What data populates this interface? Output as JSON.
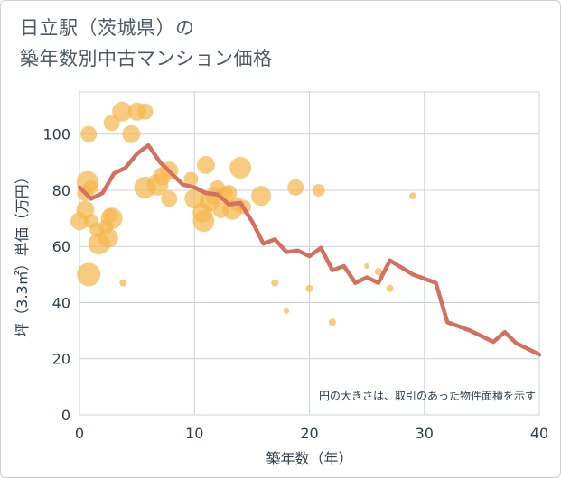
{
  "title_line1": "日立駅（茨城県）の",
  "title_line2": "築年数別中古マンション価格",
  "colors": {
    "line": "#d4705e",
    "bubble": "#f5b64a",
    "grid": "#c8d3dc",
    "axis": "#2f3f4c"
  },
  "chart_data": {
    "type": "scatter",
    "title": "日立駅（茨城県）の築年数別中古マンション価格",
    "xlabel": "築年数（年）",
    "ylabel": "坪（3.3㎡）単価（万円）",
    "xlim": [
      0,
      40
    ],
    "ylim": [
      0,
      115
    ],
    "x_ticks": [
      0,
      10,
      20,
      30,
      40
    ],
    "y_ticks": [
      0,
      20,
      40,
      60,
      80,
      100
    ],
    "grid": true,
    "annotation": "円の大きさは、取引のあった物件面積を示す",
    "series": [
      {
        "kind": "bubble",
        "points": [
          {
            "x": 0,
            "y": 69,
            "s": 10
          },
          {
            "x": 0.5,
            "y": 73,
            "s": 10
          },
          {
            "x": 0.5,
            "y": 79,
            "s": 9
          },
          {
            "x": 0.7,
            "y": 83,
            "s": 12
          },
          {
            "x": 0.8,
            "y": 100,
            "s": 9
          },
          {
            "x": 0.8,
            "y": 50,
            "s": 13
          },
          {
            "x": 1,
            "y": 81,
            "s": 8
          },
          {
            "x": 1,
            "y": 69,
            "s": 8
          },
          {
            "x": 1.5,
            "y": 66,
            "s": 8
          },
          {
            "x": 1.7,
            "y": 61,
            "s": 12
          },
          {
            "x": 2.3,
            "y": 67,
            "s": 8
          },
          {
            "x": 2.5,
            "y": 63,
            "s": 11
          },
          {
            "x": 2.7,
            "y": 71,
            "s": 8
          },
          {
            "x": 2.8,
            "y": 70,
            "s": 12
          },
          {
            "x": 2.8,
            "y": 104,
            "s": 9
          },
          {
            "x": 3.7,
            "y": 108,
            "s": 11
          },
          {
            "x": 3.8,
            "y": 47,
            "s": 4
          },
          {
            "x": 4.5,
            "y": 100,
            "s": 10
          },
          {
            "x": 5,
            "y": 108,
            "s": 10
          },
          {
            "x": 5.7,
            "y": 108,
            "s": 9
          },
          {
            "x": 5.7,
            "y": 81,
            "s": 12
          },
          {
            "x": 6.8,
            "y": 82,
            "s": 12
          },
          {
            "x": 7.2,
            "y": 85,
            "s": 10
          },
          {
            "x": 7.8,
            "y": 87,
            "s": 10
          },
          {
            "x": 7.8,
            "y": 77,
            "s": 9
          },
          {
            "x": 9.7,
            "y": 84,
            "s": 8
          },
          {
            "x": 10,
            "y": 77,
            "s": 11
          },
          {
            "x": 10.7,
            "y": 72,
            "s": 11
          },
          {
            "x": 10.8,
            "y": 69,
            "s": 12
          },
          {
            "x": 11,
            "y": 89,
            "s": 10
          },
          {
            "x": 11.3,
            "y": 76,
            "s": 11
          },
          {
            "x": 11.7,
            "y": 78,
            "s": 10
          },
          {
            "x": 12,
            "y": 81,
            "s": 8
          },
          {
            "x": 12.3,
            "y": 73,
            "s": 9
          },
          {
            "x": 12.7,
            "y": 79,
            "s": 8
          },
          {
            "x": 13,
            "y": 79,
            "s": 9
          },
          {
            "x": 13.3,
            "y": 73,
            "s": 11
          },
          {
            "x": 13.7,
            "y": 75,
            "s": 8
          },
          {
            "x": 14,
            "y": 88,
            "s": 12
          },
          {
            "x": 14.3,
            "y": 74,
            "s": 8
          },
          {
            "x": 15.8,
            "y": 78,
            "s": 11
          },
          {
            "x": 17,
            "y": 47,
            "s": 4
          },
          {
            "x": 18,
            "y": 37,
            "s": 3
          },
          {
            "x": 18.8,
            "y": 81,
            "s": 9
          },
          {
            "x": 20,
            "y": 45,
            "s": 4
          },
          {
            "x": 20.8,
            "y": 80,
            "s": 7
          },
          {
            "x": 22,
            "y": 33,
            "s": 4
          },
          {
            "x": 25,
            "y": 53,
            "s": 3
          },
          {
            "x": 26,
            "y": 51,
            "s": 4
          },
          {
            "x": 27,
            "y": 45,
            "s": 4
          },
          {
            "x": 29,
            "y": 78,
            "s": 4
          }
        ]
      },
      {
        "kind": "line",
        "points": [
          [
            0,
            81
          ],
          [
            1,
            77
          ],
          [
            2,
            79
          ],
          [
            3,
            86
          ],
          [
            4,
            88
          ],
          [
            5,
            93
          ],
          [
            6,
            96
          ],
          [
            7,
            90
          ],
          [
            8,
            86
          ],
          [
            9,
            82
          ],
          [
            10,
            81
          ],
          [
            11,
            79
          ],
          [
            12,
            78.5
          ],
          [
            13,
            75
          ],
          [
            14,
            75.5
          ],
          [
            15,
            69
          ],
          [
            16,
            61
          ],
          [
            17,
            62.5
          ],
          [
            18,
            58
          ],
          [
            19,
            58.5
          ],
          [
            20,
            56.5
          ],
          [
            21,
            59.5
          ],
          [
            22,
            51.5
          ],
          [
            23,
            53
          ],
          [
            24,
            47
          ],
          [
            25,
            49
          ],
          [
            26,
            47
          ],
          [
            27,
            55
          ],
          [
            28,
            52.5
          ],
          [
            29,
            50
          ],
          [
            30,
            48.5
          ],
          [
            31,
            47
          ],
          [
            32,
            33
          ],
          [
            33,
            31.5
          ],
          [
            34,
            30
          ],
          [
            35,
            28
          ],
          [
            36,
            26
          ],
          [
            37,
            29.5
          ],
          [
            38,
            25.5
          ],
          [
            39,
            23.5
          ],
          [
            40,
            21.5
          ]
        ]
      }
    ]
  }
}
